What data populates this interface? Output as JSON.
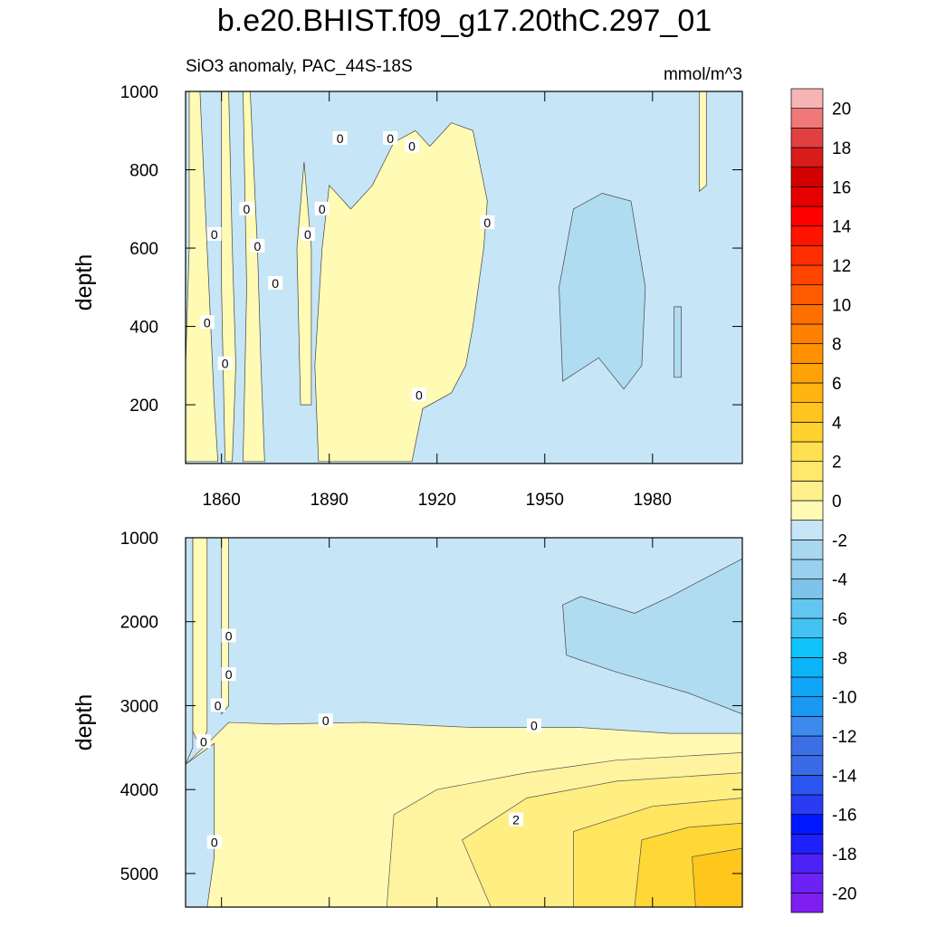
{
  "chart_data": [
    {
      "type": "heatmap",
      "title": "b.e20.BHIST.f09_g17.20thC.297_01",
      "subtitle_left": "SiO3 anomaly, PAC_44S-18S",
      "subtitle_right": "mmol/m^3",
      "ylabel": "depth",
      "xlim": [
        1850,
        2005
      ],
      "ylim": [
        1000,
        50
      ],
      "y_reversed": true,
      "x_ticks": [
        1860,
        1890,
        1920,
        1950,
        1980
      ],
      "x_tick_labels": [
        "1860",
        "1890",
        "1920",
        "1950",
        "1980"
      ],
      "y_ticks": [
        200,
        400,
        600,
        800,
        1000
      ],
      "y_tick_labels": [
        "200",
        "400",
        "600",
        "800",
        "1000"
      ],
      "positive_regions": [
        {
          "label": "early-column-1",
          "points": [
            [
              1850,
              55
            ],
            [
              1859,
              55
            ],
            [
              1858,
              200
            ],
            [
              1857,
              400
            ],
            [
              1856,
              600
            ],
            [
              1855,
              800
            ],
            [
              1854,
              1000
            ],
            [
              1851,
              1000
            ],
            [
              1851,
              600
            ],
            [
              1850,
              300
            ]
          ]
        },
        {
          "label": "early-column-2",
          "points": [
            [
              1861,
              55
            ],
            [
              1863,
              55
            ],
            [
              1864,
              300
            ],
            [
              1863,
              600
            ],
            [
              1862,
              1000
            ],
            [
              1860,
              1000
            ],
            [
              1860,
              500
            ]
          ]
        },
        {
          "label": "early-column-3",
          "points": [
            [
              1866,
              55
            ],
            [
              1872,
              55
            ],
            [
              1871,
              300
            ],
            [
              1870,
              600
            ],
            [
              1868,
              1000
            ],
            [
              1866,
              1000
            ],
            [
              1867,
              500
            ]
          ]
        },
        {
          "label": "column-1880",
          "points": [
            [
              1882,
              200
            ],
            [
              1885,
              200
            ],
            [
              1885,
              600
            ],
            [
              1883,
              820
            ],
            [
              1881,
              600
            ]
          ]
        },
        {
          "label": "main-block",
          "points": [
            [
              1887,
              55
            ],
            [
              1913,
              55
            ],
            [
              1916,
              190
            ],
            [
              1924,
              230
            ],
            [
              1928,
              300
            ],
            [
              1930,
              400
            ],
            [
              1933,
              600
            ],
            [
              1934,
              720
            ],
            [
              1930,
              900
            ],
            [
              1924,
              920
            ],
            [
              1918,
              860
            ],
            [
              1914,
              900
            ],
            [
              1908,
              870
            ],
            [
              1902,
              760
            ],
            [
              1896,
              700
            ],
            [
              1890,
              760
            ],
            [
              1888,
              600
            ],
            [
              1886,
              300
            ]
          ]
        },
        {
          "label": "late-sliver",
          "points": [
            [
              1993,
              745
            ],
            [
              1995,
              760
            ],
            [
              1995,
              1000
            ],
            [
              1993,
              1000
            ]
          ]
        }
      ],
      "negative_regions": [
        {
          "label": "mid-century-minus",
          "points": [
            [
              1955,
              260
            ],
            [
              1965,
              320
            ],
            [
              1972,
              240
            ],
            [
              1977,
              300
            ],
            [
              1978,
              500
            ],
            [
              1974,
              720
            ],
            [
              1966,
              740
            ],
            [
              1958,
              700
            ],
            [
              1954,
              500
            ]
          ]
        },
        {
          "label": "late-minus",
          "points": [
            [
              1986,
              270
            ],
            [
              1988,
              270
            ],
            [
              1988,
              450
            ],
            [
              1986,
              450
            ]
          ]
        }
      ],
      "contour_labels": [
        {
          "text": "0",
          "x": 1915,
          "y": 225
        },
        {
          "text": "0",
          "x": 1861,
          "y": 305
        },
        {
          "text": "0",
          "x": 1856,
          "y": 410
        },
        {
          "text": "0",
          "x": 1875,
          "y": 510
        },
        {
          "text": "0",
          "x": 1858,
          "y": 635
        },
        {
          "text": "0",
          "x": 1870,
          "y": 605
        },
        {
          "text": "0",
          "x": 1884,
          "y": 635
        },
        {
          "text": "0",
          "x": 1867,
          "y": 700
        },
        {
          "text": "0",
          "x": 1888,
          "y": 700
        },
        {
          "text": "0",
          "x": 1934,
          "y": 665
        },
        {
          "text": "0",
          "x": 1893,
          "y": 880
        },
        {
          "text": "0",
          "x": 1907,
          "y": 880
        },
        {
          "text": "0",
          "x": 1913,
          "y": 860
        }
      ]
    },
    {
      "type": "heatmap",
      "ylabel": "depth",
      "xlim": [
        1850,
        2005
      ],
      "ylim": [
        1000,
        5400
      ],
      "y_reversed": true,
      "y_ticks": [
        1000,
        2000,
        3000,
        4000,
        5000
      ],
      "y_tick_labels": [
        "1000",
        "2000",
        "3000",
        "4000",
        "5000"
      ],
      "x_ticks": [
        1860,
        1890,
        1920,
        1950,
        1980
      ],
      "x_tick_labels": [
        "",
        "",
        "",
        "",
        ""
      ],
      "bands": [
        {
          "min": 0,
          "max": 0.5,
          "color": "#fff9b3",
          "points": [
            [
              1850,
              3700
            ],
            [
              1855,
              3500
            ],
            [
              1862,
              3200
            ],
            [
              1875,
              3220
            ],
            [
              1900,
              3200
            ],
            [
              1930,
              3260
            ],
            [
              1960,
              3260
            ],
            [
              1985,
              3330
            ],
            [
              2005,
              3330
            ],
            [
              2005,
              5400
            ],
            [
              1850,
              5400
            ]
          ]
        },
        {
          "min": 0.5,
          "max": 1,
          "color": "#fff3a0",
          "points": [
            [
              1906,
              5400
            ],
            [
              1908,
              4300
            ],
            [
              1920,
              4000
            ],
            [
              1945,
              3800
            ],
            [
              1970,
              3650
            ],
            [
              2005,
              3560
            ],
            [
              2005,
              5400
            ]
          ]
        },
        {
          "min": 1,
          "max": 1.5,
          "color": "#ffee82",
          "points": [
            [
              1935,
              5400
            ],
            [
              1927,
              4600
            ],
            [
              1945,
              4100
            ],
            [
              1970,
              3900
            ],
            [
              2005,
              3800
            ],
            [
              2005,
              5400
            ]
          ]
        },
        {
          "min": 1.5,
          "max": 2,
          "color": "#ffe560",
          "points": [
            [
              1958,
              5400
            ],
            [
              1958,
              4500
            ],
            [
              1980,
              4200
            ],
            [
              2005,
              4100
            ],
            [
              2005,
              5400
            ]
          ]
        },
        {
          "min": 2,
          "max": 2.5,
          "color": "#ffd835",
          "points": [
            [
              1975,
              5400
            ],
            [
              1977,
              4600
            ],
            [
              1990,
              4450
            ],
            [
              2005,
              4400
            ],
            [
              2005,
              5400
            ]
          ]
        },
        {
          "min": 2.5,
          "max": 3,
          "color": "#ffc61c",
          "points": [
            [
              1992,
              5400
            ],
            [
              1991,
              4800
            ],
            [
              2005,
              4700
            ],
            [
              2005,
              5400
            ]
          ]
        }
      ],
      "negative_regions": [
        {
          "label": "upper-left-minus-column",
          "points": [
            [
              1850,
              1000
            ],
            [
              1852,
              1000
            ],
            [
              1852,
              3500
            ],
            [
              1850,
              3700
            ]
          ]
        },
        {
          "label": "deep-left-minus",
          "points": [
            [
              1850,
              3700
            ],
            [
              1858,
              3450
            ],
            [
              1858,
              4800
            ],
            [
              1856,
              5400
            ],
            [
              1850,
              5400
            ]
          ]
        },
        {
          "label": "late-deep-minus",
          "points": [
            [
              1955,
              1800
            ],
            [
              1960,
              1700
            ],
            [
              1975,
              1900
            ],
            [
              1985,
              1700
            ],
            [
              2005,
              1250
            ],
            [
              2005,
              3100
            ],
            [
              1990,
              2850
            ],
            [
              1970,
              2600
            ],
            [
              1956,
              2400
            ]
          ]
        }
      ],
      "positive_regions": [
        {
          "label": "early-column-a",
          "points": [
            [
              1852,
              1000
            ],
            [
              1856,
              1000
            ],
            [
              1856,
              3300
            ],
            [
              1854,
              3500
            ],
            [
              1852,
              3300
            ]
          ]
        },
        {
          "label": "early-column-b",
          "points": [
            [
              1860,
              1000
            ],
            [
              1862,
              1000
            ],
            [
              1862,
              3000
            ],
            [
              1860,
              3100
            ]
          ]
        }
      ],
      "contour_labels": [
        {
          "text": "0",
          "x": 1862,
          "y": 2170
        },
        {
          "text": "0",
          "x": 1862,
          "y": 2630
        },
        {
          "text": "0",
          "x": 1859,
          "y": 3000
        },
        {
          "text": "0",
          "x": 1855,
          "y": 3430
        },
        {
          "text": "0",
          "x": 1889,
          "y": 3180
        },
        {
          "text": "0",
          "x": 1947,
          "y": 3240
        },
        {
          "text": "0",
          "x": 1858,
          "y": 4630
        },
        {
          "text": "2",
          "x": 1942,
          "y": 4360
        }
      ]
    },
    {
      "type": "colorbar",
      "levels": [
        -20,
        -18,
        -16,
        -14,
        -12,
        -10,
        -8,
        -6,
        -4,
        -2,
        0,
        2,
        4,
        6,
        8,
        10,
        12,
        14,
        16,
        18,
        20
      ],
      "tick_labels": [
        "-20",
        "-18",
        "-16",
        "-14",
        "-12",
        "-10",
        "-8",
        "-6",
        "-4",
        "-2",
        "0",
        "2",
        "4",
        "6",
        "8",
        "10",
        "12",
        "14",
        "16",
        "18",
        "20"
      ],
      "colors": [
        "#7f1ef0",
        "#6c22f4",
        "#4d22f6",
        "#2020ff",
        "#0018ff",
        "#2a3cf2",
        "#2a55ee",
        "#3a6ae6",
        "#3c6ee6",
        "#3c8aee",
        "#1a99f2",
        "#10a5f7",
        "#0cb3f9",
        "#0ec4fb",
        "#44c2f2",
        "#62c6f1",
        "#7dc3ea",
        "#98d0ee",
        "#a8d7f0",
        "#c6e5f7",
        "#fffab4",
        "#fff08c",
        "#ffe86a",
        "#ffe050",
        "#ffd22e",
        "#ffc420",
        "#ffb410",
        "#ffa205",
        "#ff9000",
        "#ff8000",
        "#ff6f00",
        "#ff5a00",
        "#ff4500",
        "#ff2e00",
        "#ff1400",
        "#ff0000",
        "#e60000",
        "#d40000",
        "#d81c1c",
        "#e04040",
        "#f07878",
        "#f7b4b4"
      ]
    }
  ],
  "colors": {
    "zero_minus": "#c6e5f7",
    "minus_1": "#b0dcf2",
    "plus_zero": "#fffab4"
  }
}
